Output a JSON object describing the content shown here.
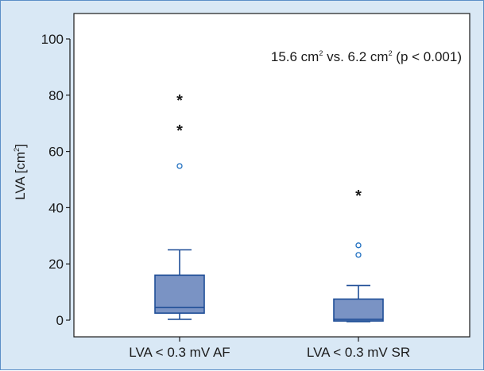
{
  "chart_data": {
    "type": "box",
    "title": "",
    "ylabel": "LVA [cm",
    "ylabel_sup": "2",
    "ylabel_close": "]",
    "ylim": [
      0,
      100
    ],
    "yticks": [
      0,
      20,
      40,
      60,
      80,
      100
    ],
    "grid": false,
    "annotation": {
      "part1": "15.6 cm",
      "sup1": "2",
      "part2": " vs. 6.2 cm",
      "sup2": "2",
      "part3": " (p < 0.001)"
    },
    "categories": [
      "LVA < 0.3 mV AF",
      "LVA < 0.3 mV SR"
    ],
    "boxes": [
      {
        "category": "LVA < 0.3 mV AF",
        "whisker_low": 0.3,
        "q1": 2.5,
        "median": 4.5,
        "q3": 16,
        "whisker_high": 25,
        "outliers": [
          54.8
        ],
        "extremes": [
          67.8,
          78.5
        ]
      },
      {
        "category": "LVA < 0.3 mV SR",
        "whisker_low": -0.5,
        "q1": -0.3,
        "median": 0.3,
        "q3": 7.5,
        "whisker_high": 12.3,
        "outliers": [
          23.2,
          26.6
        ],
        "extremes": [
          44.7
        ]
      }
    ],
    "colors": {
      "box_fill": "#7a93c4",
      "box_stroke": "#1f4e97",
      "outlier": "#1f6fc0",
      "extreme": "#1a1a1a",
      "background": "#d9e8f5",
      "plot_background": "#ffffff"
    }
  }
}
